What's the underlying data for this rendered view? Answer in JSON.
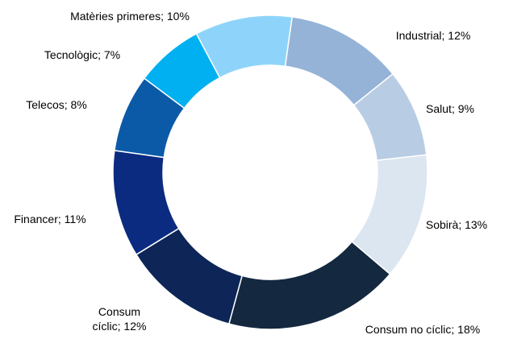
{
  "chart_data": {
    "type": "donut",
    "values": [
      12,
      9,
      13,
      18,
      12,
      11,
      8,
      7,
      10
    ],
    "value_labels": [
      "Industrial; 12%",
      "Salut; 9%",
      "Sobirà; 13%",
      "Consum no cíclic; 18%",
      "Consum cíclic; 12%",
      "Financer; 11%",
      "Telecos; 8%",
      "Tecnològic; 7%",
      "Matèries primeres; 10%"
    ],
    "colors": [
      "#95b3d7",
      "#b8cce4",
      "#dce6f1",
      "#14283f",
      "#0d2557",
      "#0b2b80",
      "#0b5aa8",
      "#00b0f0",
      "#8ed4fa"
    ]
  }
}
